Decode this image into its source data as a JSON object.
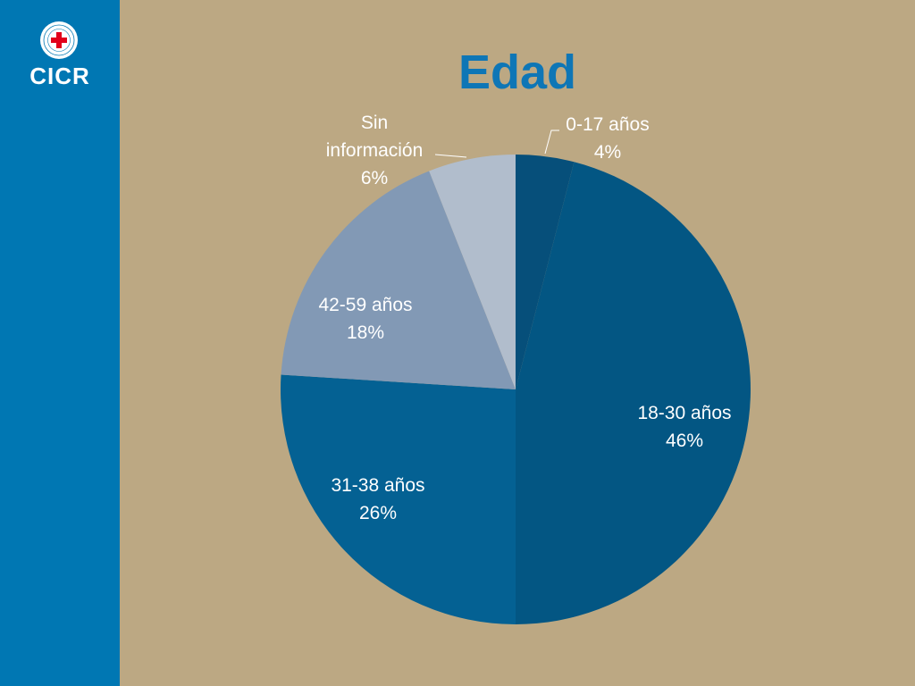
{
  "brand": {
    "name": "CICR",
    "emblem_icon": "red-cross-emblem-icon"
  },
  "colors": {
    "sidebar": "#0077b3",
    "background": "#bca883",
    "title": "#0e76b6"
  },
  "chart_data": {
    "type": "pie",
    "title": "Edad",
    "start": "top, clockwise",
    "slices": [
      {
        "label": [
          "0-17 años"
        ],
        "value": 4,
        "text": "4%",
        "color": "#064f7a"
      },
      {
        "label": [
          "18-30 años"
        ],
        "value": 46,
        "text": "46%",
        "color": "#035683"
      },
      {
        "label": [
          "31-38 años"
        ],
        "value": 26,
        "text": "26%",
        "color": "#046193"
      },
      {
        "label": [
          "42-59 años"
        ],
        "value": 18,
        "text": "18%",
        "color": "#8299b5"
      },
      {
        "label": [
          "Sin",
          "información"
        ],
        "value": 6,
        "text": "6%",
        "color": "#b1bdcc"
      }
    ]
  }
}
